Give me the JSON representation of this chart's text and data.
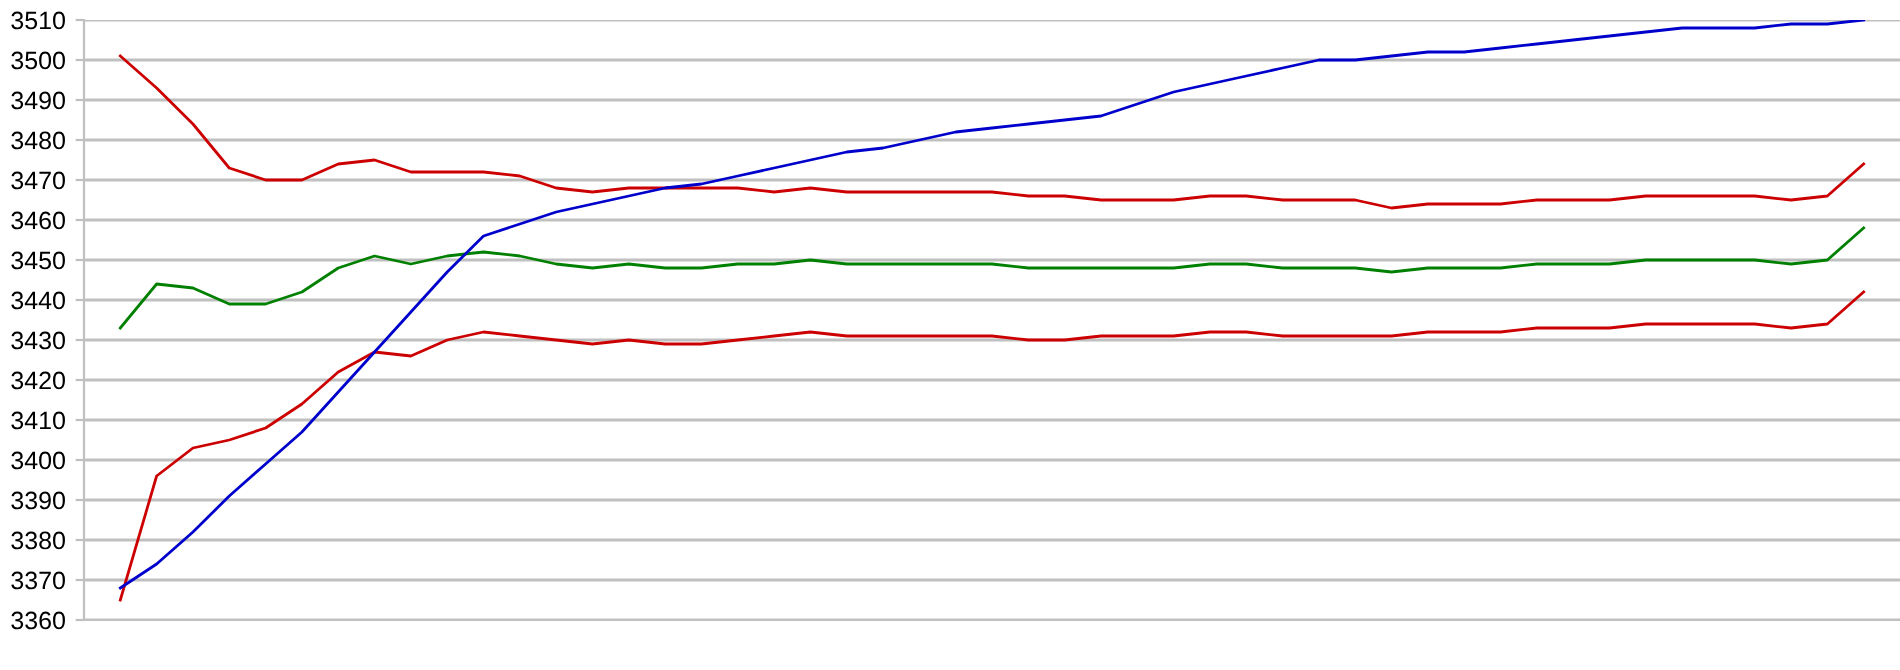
{
  "chart_data": {
    "type": "line",
    "categories": [
      null,
      null,
      null,
      null,
      null,
      null,
      null,
      null,
      null,
      null,
      null,
      null,
      null,
      null,
      null,
      null,
      null,
      null,
      null,
      null,
      null,
      null,
      null,
      null,
      null,
      null,
      null,
      null,
      null,
      null,
      null,
      null,
      null,
      null,
      null,
      null,
      null,
      null,
      null,
      null,
      null,
      null,
      null,
      null,
      null,
      null,
      null,
      null,
      null
    ],
    "series": [
      {
        "color": "#cc0000",
        "values": [
          3501,
          3493,
          3484,
          3473,
          3470,
          3470,
          3474,
          3475,
          3472,
          3472,
          3472,
          3471,
          3468,
          3467,
          3468,
          3468,
          3468,
          3468,
          3467,
          3468,
          3467,
          3467,
          3467,
          3467,
          3467,
          3466,
          3466,
          3465,
          3465,
          3465,
          3466,
          3466,
          3465,
          3465,
          3465,
          3463,
          3464,
          3464,
          3464,
          3465,
          3465,
          3465,
          3466,
          3466,
          3466,
          3466,
          3465,
          3466,
          3474
        ]
      },
      {
        "color": "#008000",
        "values": [
          3433,
          3444,
          3443,
          3439,
          3439,
          3442,
          3448,
          3451,
          3449,
          3451,
          3452,
          3451,
          3449,
          3448,
          3449,
          3448,
          3448,
          3449,
          3449,
          3450,
          3449,
          3449,
          3449,
          3449,
          3449,
          3448,
          3448,
          3448,
          3448,
          3448,
          3449,
          3449,
          3448,
          3448,
          3448,
          3447,
          3448,
          3448,
          3448,
          3449,
          3449,
          3449,
          3450,
          3450,
          3450,
          3450,
          3449,
          3450,
          3458
        ]
      },
      {
        "color": "#cc0000",
        "values": [
          3365,
          3396,
          3403,
          3405,
          3408,
          3414,
          3422,
          3427,
          3426,
          3430,
          3432,
          3431,
          3430,
          3429,
          3430,
          3429,
          3429,
          3430,
          3431,
          3432,
          3431,
          3431,
          3431,
          3431,
          3431,
          3430,
          3430,
          3431,
          3431,
          3431,
          3432,
          3432,
          3431,
          3431,
          3431,
          3431,
          3432,
          3432,
          3432,
          3433,
          3433,
          3433,
          3434,
          3434,
          3434,
          3434,
          3433,
          3434,
          3442
        ]
      },
      {
        "color": "#0000cc",
        "values": [
          3368,
          3374,
          3382,
          3391,
          3399,
          3407,
          3417,
          3427,
          3437,
          3447,
          3456,
          3459,
          3462,
          3464,
          3466,
          3468,
          3469,
          3471,
          3473,
          3475,
          3477,
          3478,
          3480,
          3482,
          3483,
          3484,
          3485,
          3486,
          3489,
          3492,
          3494,
          3496,
          3498,
          3500,
          3500,
          3501,
          3502,
          3502,
          3503,
          3504,
          3505,
          3506,
          3507,
          3508,
          3508,
          3508,
          3509,
          3509,
          3510
        ]
      }
    ],
    "ylim": [
      3360,
      3510
    ],
    "yticks": [
      3360,
      3370,
      3380,
      3390,
      3400,
      3410,
      3420,
      3430,
      3440,
      3450,
      3460,
      3470,
      3480,
      3490,
      3500,
      3510
    ],
    "grid": "y",
    "marker": "none",
    "line_style": "solid"
  }
}
